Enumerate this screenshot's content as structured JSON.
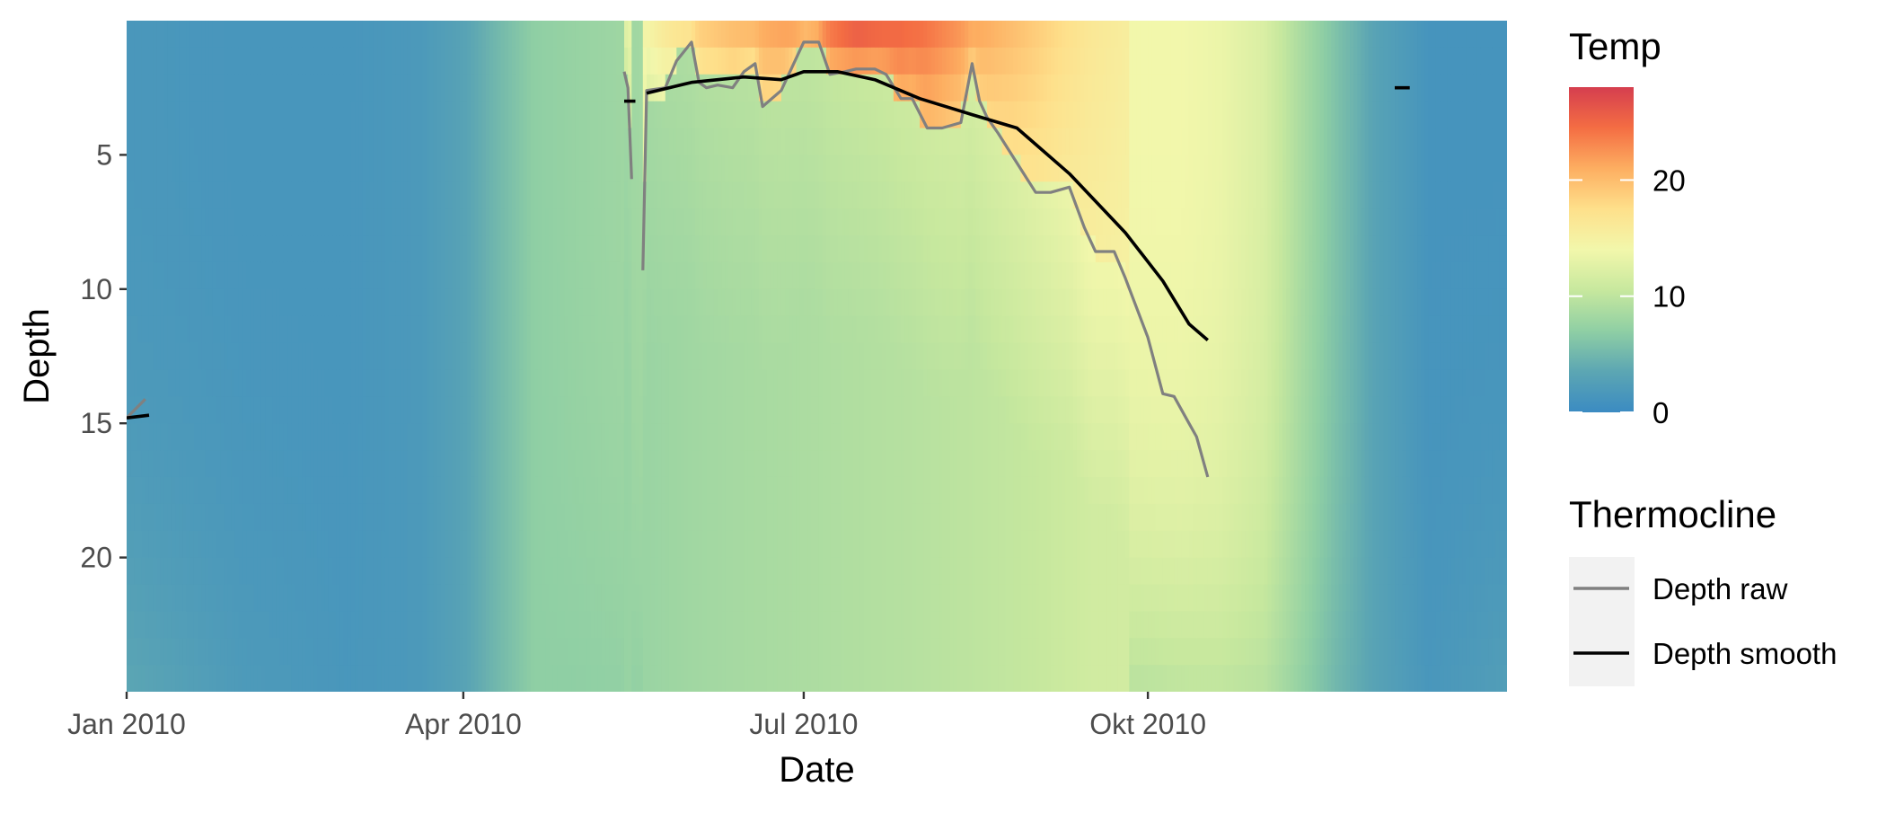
{
  "chart_data": {
    "type": "heatmap",
    "xlabel": "Date",
    "ylabel": "Depth",
    "x_ticks": [
      {
        "date": "2010-01-01",
        "label": "Jan 2010"
      },
      {
        "date": "2010-04-01",
        "label": "Apr 2010"
      },
      {
        "date": "2010-07-01",
        "label": "Jul 2010"
      },
      {
        "date": "2010-10-01",
        "label": "Okt 2010"
      }
    ],
    "xlim": [
      "2010-01-01",
      "2011-01-05"
    ],
    "y_ticks": [
      5,
      10,
      15,
      20
    ],
    "ylim": [
      0,
      25
    ],
    "y_reversed": true,
    "grid": false,
    "fill_scale": {
      "name": "Temp",
      "min": 0,
      "max": 28,
      "ticks": [
        0,
        10,
        20
      ],
      "palette": "Spectral",
      "colors": [
        "#3B8BC2",
        "#5CA6B3",
        "#8FCFA4",
        "#C7E89E",
        "#F2F7AB",
        "#FEE08B",
        "#FDAE61",
        "#F46D43",
        "#D53E4F"
      ]
    },
    "temperature_profile": {
      "dates": [
        "2010-01-01",
        "2010-02-01",
        "2010-03-01",
        "2010-03-20",
        "2010-04-01",
        "2010-04-10",
        "2010-04-20",
        "2010-05-01",
        "2010-05-15",
        "2010-06-01",
        "2010-06-15",
        "2010-07-01",
        "2010-07-15",
        "2010-08-01",
        "2010-08-15",
        "2010-09-01",
        "2010-09-15",
        "2010-10-01",
        "2010-10-10",
        "2010-10-20",
        "2010-11-01",
        "2010-11-10",
        "2010-11-20",
        "2010-12-01",
        "2010-12-15",
        "2011-01-05"
      ],
      "surface_temp": [
        1.6,
        1.4,
        1.4,
        1.8,
        3.0,
        5.0,
        7.0,
        8.5,
        13,
        19,
        21,
        23,
        27,
        25,
        22,
        19,
        16.5,
        15,
        14.5,
        13.5,
        12,
        9,
        6,
        3,
        1.2,
        1.2
      ],
      "mixed_temp": [
        1.6,
        1.4,
        1.4,
        1.8,
        3.0,
        5.0,
        7.0,
        7.5,
        8.0,
        9.0,
        9.5,
        10.0,
        10.5,
        11.0,
        11.5,
        12.5,
        14.0,
        14.0,
        14.0,
        13.5,
        12,
        9,
        6,
        3,
        1.2,
        1.2
      ],
      "bottom_temp": [
        3.5,
        2.0,
        1.5,
        1.8,
        3.0,
        5.0,
        7.0,
        7.0,
        7.2,
        7.5,
        7.8,
        8.0,
        8.2,
        8.5,
        8.8,
        9.0,
        9.3,
        9.6,
        9.9,
        10.0,
        9.5,
        7.5,
        5.0,
        3.0,
        1.5,
        2.5
      ]
    },
    "series": [
      {
        "name": "Depth raw",
        "color": "#808080",
        "segments": [
          {
            "dates": [
              "2010-01-01",
              "2010-01-06"
            ],
            "values": [
              14.8,
              14.1
            ]
          },
          {
            "dates": [
              "2010-05-14",
              "2010-05-15",
              "2010-05-16"
            ],
            "values": [
              1.9,
              2.5,
              5.9
            ]
          },
          {
            "dates": [
              "2010-05-19",
              "2010-05-20",
              "2010-05-25",
              "2010-05-28",
              "2010-06-01",
              "2010-06-03",
              "2010-06-05",
              "2010-06-08",
              "2010-06-12",
              "2010-06-15",
              "2010-06-18",
              "2010-06-20",
              "2010-06-25",
              "2010-07-01",
              "2010-07-05",
              "2010-07-08",
              "2010-07-12",
              "2010-07-15",
              "2010-07-20",
              "2010-07-23",
              "2010-07-27",
              "2010-07-30",
              "2010-08-03",
              "2010-08-07",
              "2010-08-12",
              "2010-08-15",
              "2010-08-17",
              "2010-08-19",
              "2010-08-22",
              "2010-08-27",
              "2010-09-01",
              "2010-09-05",
              "2010-09-10",
              "2010-09-14",
              "2010-09-17",
              "2010-09-22",
              "2010-09-25",
              "2010-10-01",
              "2010-10-05",
              "2010-10-08",
              "2010-10-12",
              "2010-10-14",
              "2010-10-17"
            ],
            "values": [
              9.3,
              2.6,
              2.5,
              1.5,
              0.8,
              2.3,
              2.5,
              2.4,
              2.5,
              1.9,
              1.6,
              3.2,
              2.6,
              0.8,
              0.8,
              2.0,
              1.9,
              1.8,
              1.8,
              2.0,
              2.9,
              2.9,
              4.0,
              4.0,
              3.8,
              1.6,
              3.0,
              3.6,
              4.2,
              5.3,
              6.4,
              6.4,
              6.2,
              7.7,
              8.6,
              8.6,
              9.6,
              11.8,
              13.9,
              14.0,
              15.0,
              15.5,
              17.0
            ]
          }
        ]
      },
      {
        "name": "Depth smooth",
        "color": "#000000",
        "segments": [
          {
            "dates": [
              "2010-01-01",
              "2010-01-07"
            ],
            "values": [
              14.8,
              14.7
            ]
          },
          {
            "dates": [
              "2010-05-14",
              "2010-05-17"
            ],
            "values": [
              3.0,
              3.0
            ]
          },
          {
            "dates": [
              "2010-05-20",
              "2010-06-01",
              "2010-06-15",
              "2010-06-25",
              "2010-07-01",
              "2010-07-10",
              "2010-07-20",
              "2010-08-01",
              "2010-08-15",
              "2010-08-27",
              "2010-09-10",
              "2010-09-25",
              "2010-10-05",
              "2010-10-12",
              "2010-10-17"
            ],
            "values": [
              2.7,
              2.3,
              2.1,
              2.2,
              1.9,
              1.9,
              2.2,
              2.9,
              3.5,
              4.0,
              5.7,
              7.9,
              9.7,
              11.3,
              11.9
            ]
          },
          {
            "dates": [
              "2010-12-06",
              "2010-12-10"
            ],
            "values": [
              2.5,
              2.5
            ]
          }
        ]
      }
    ],
    "legend": {
      "title": "Thermocline",
      "position": "right"
    }
  }
}
